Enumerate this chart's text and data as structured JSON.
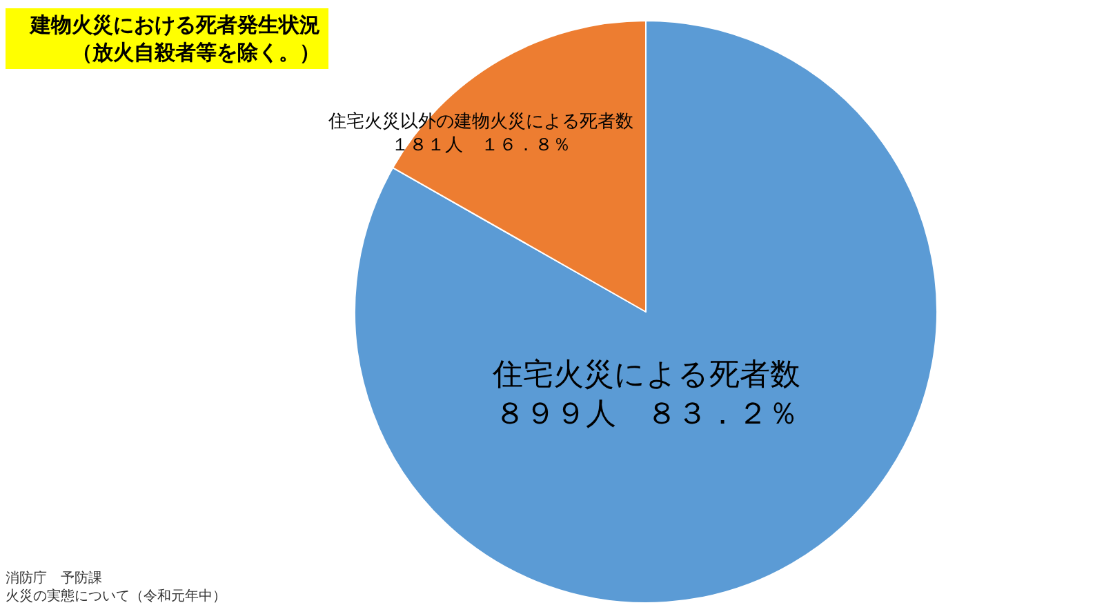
{
  "chart_data": {
    "type": "pie",
    "title": "建物火災における死者発生状況（放火自殺者等を除く。）",
    "categories": [
      "住宅火災による死者数",
      "住宅火災以外の建物火災による死者数"
    ],
    "values": [
      899,
      181
    ],
    "colors": [
      "#5b9bd5",
      "#ed7d31"
    ],
    "value_labels": [
      "８９９人　８３．２％",
      "１８１人　１６．８％"
    ],
    "annotations": [
      "消防庁　予防課",
      "火災の実態について（令和元年中）"
    ]
  }
}
